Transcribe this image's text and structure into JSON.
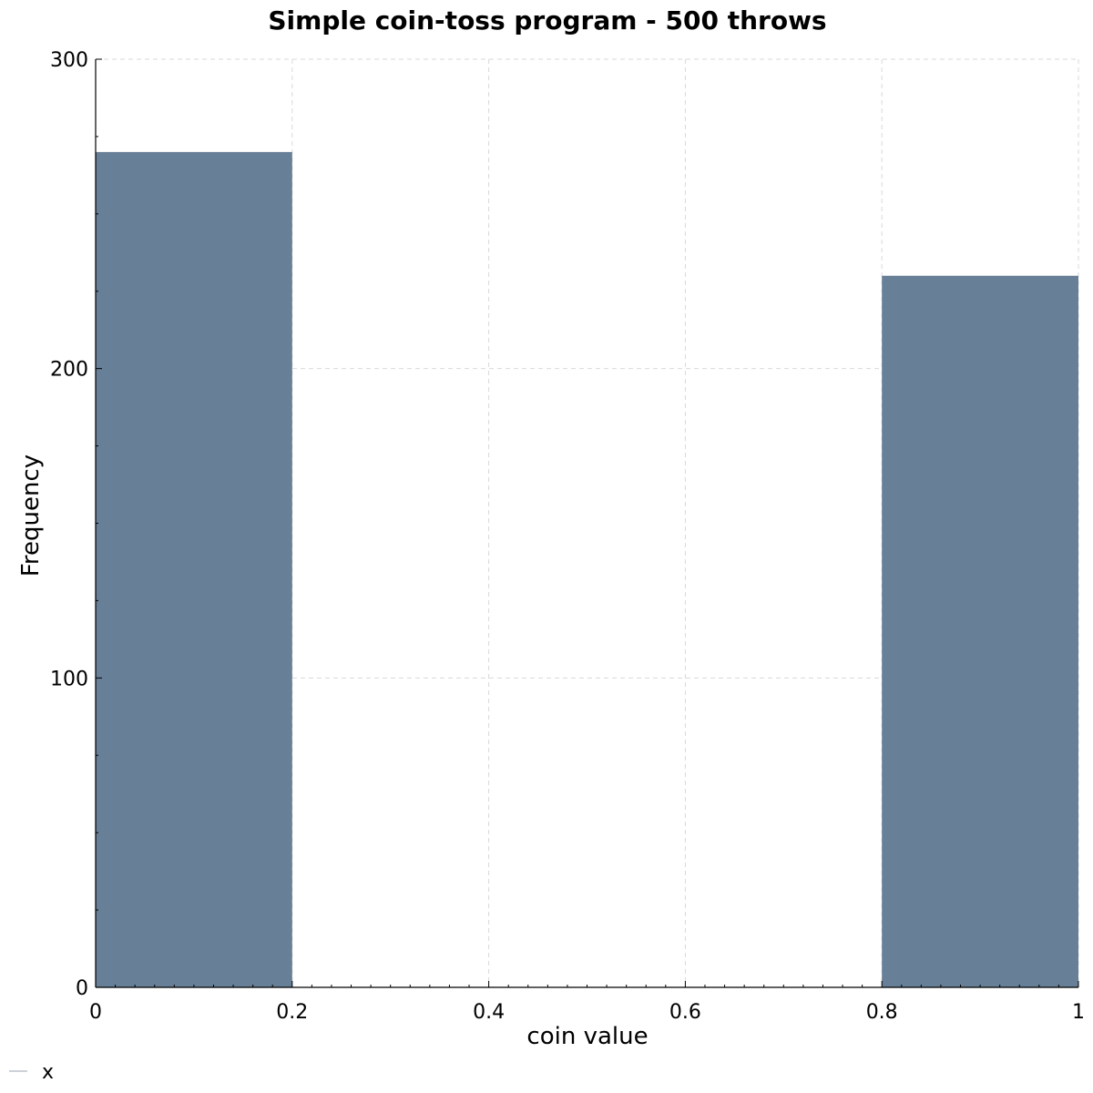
{
  "chart_data": {
    "type": "bar",
    "title": "Simple coin-toss program - 500 throws",
    "xlabel": "coin value",
    "ylabel": "Frequency",
    "xlim": [
      0,
      1
    ],
    "ylim": [
      0,
      300
    ],
    "x_ticks": [
      "0",
      "0.2",
      "0.4",
      "0.6",
      "0.8",
      "1"
    ],
    "y_ticks": [
      "0",
      "100",
      "200",
      "300"
    ],
    "bins": [
      {
        "x0": 0.0,
        "x1": 0.2,
        "value": 270
      },
      {
        "x0": 0.8,
        "x1": 1.0,
        "value": 230
      }
    ],
    "bar_color": "#677f97",
    "grid": true,
    "legend": {
      "position": "bottom-left",
      "entries": [
        "x"
      ]
    }
  }
}
